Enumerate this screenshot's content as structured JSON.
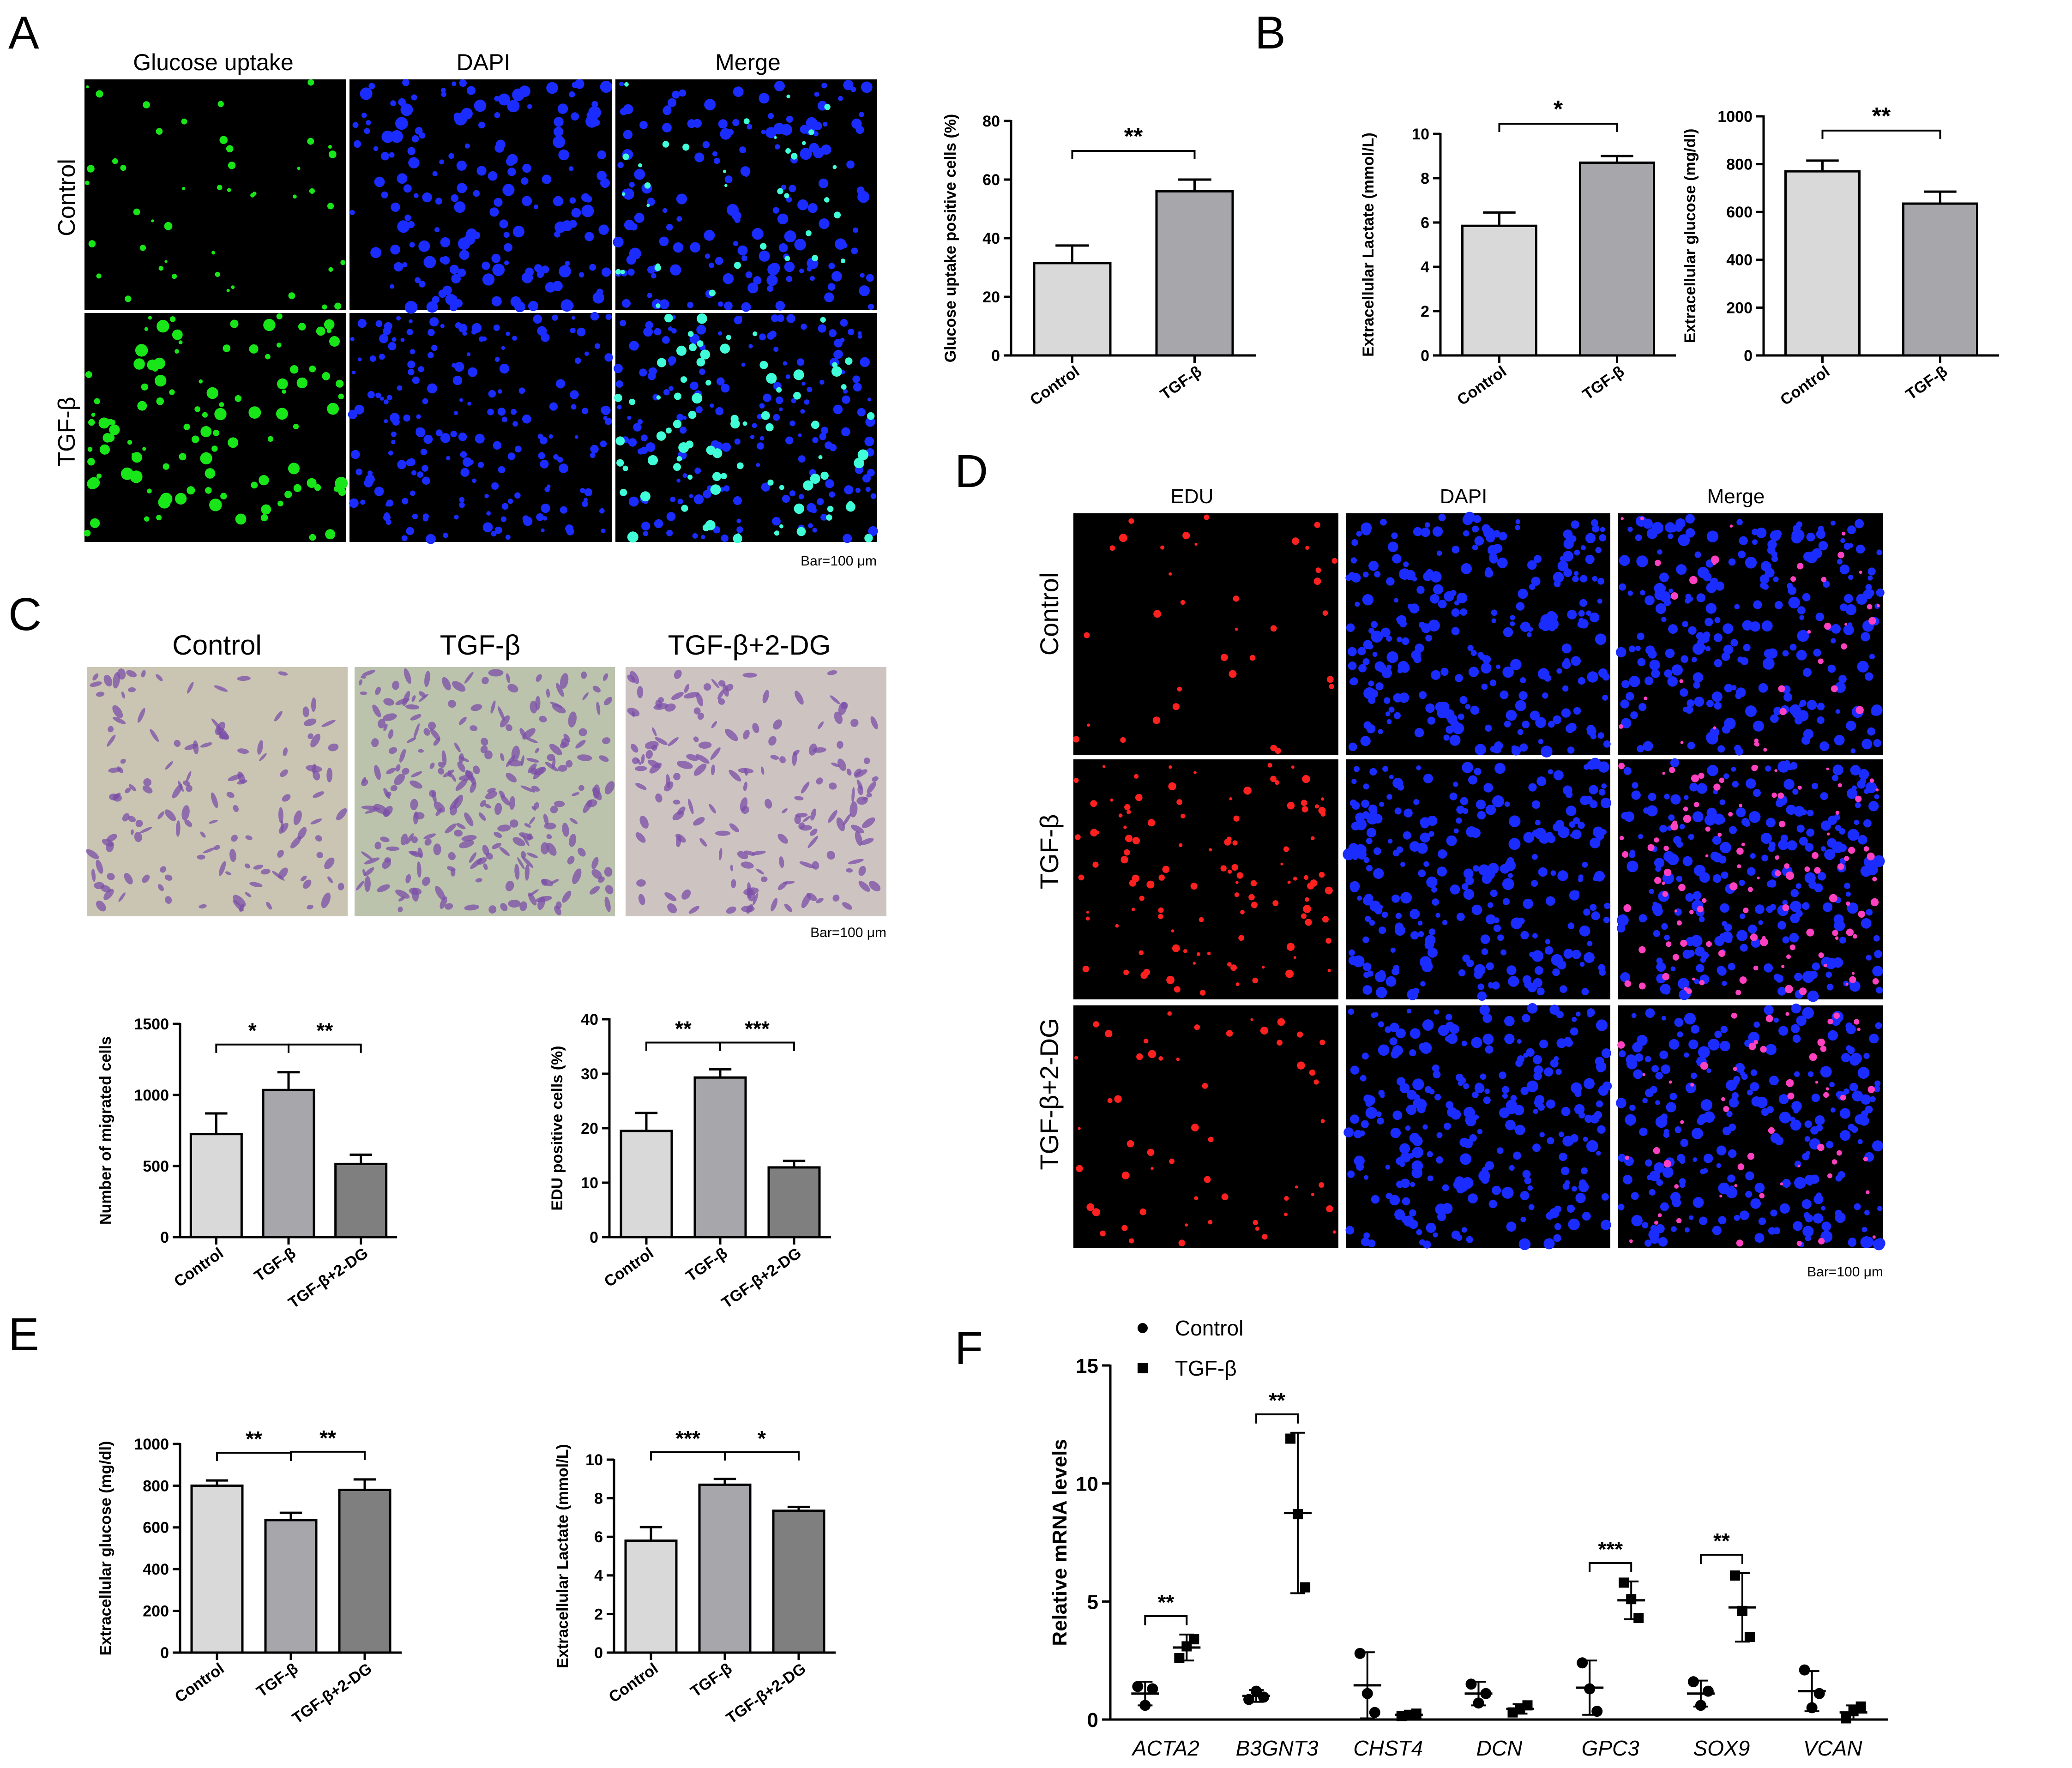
{
  "panels": {
    "A": {
      "letter": "A",
      "col_titles": [
        "Glucose uptake",
        "DAPI",
        "Merge"
      ],
      "row_labels": [
        "Control",
        "TGF-β"
      ],
      "scale_bar": "Bar=100 μm"
    },
    "B": {
      "letter": "B"
    },
    "C": {
      "letter": "C",
      "col_titles": [
        "Control",
        "TGF-β",
        "TGF-β+2-DG"
      ],
      "scale_bar": "Bar=100 μm"
    },
    "D": {
      "letter": "D",
      "col_titles": [
        "EDU",
        "DAPI",
        "Merge"
      ],
      "row_labels": [
        "Control",
        "TGF-β",
        "TGF-β+2-DG"
      ],
      "scale_bar": "Bar=100 μm"
    },
    "E": {
      "letter": "E"
    },
    "F": {
      "letter": "F"
    }
  },
  "colors": {
    "control_bar": "#d9d9d9",
    "tgf_bar": "#a6a6ab",
    "dg_bar": "#7f7f7f",
    "fluor_green": "#19e619",
    "fluor_blue": "#1a2cff",
    "fluor_red": "#ff2020",
    "fluor_cyan": "#40ffd8",
    "fluor_magenta": "#ff40c0",
    "crystal_violet": "#7b4fa8",
    "stain_background": "#c9c5b2"
  },
  "chart_data": [
    {
      "id": "A-chart",
      "type": "bar",
      "categories": [
        "Control",
        "TGF-β"
      ],
      "values": [
        31.5,
        56
      ],
      "errors": [
        6,
        4
      ],
      "ylabel": "Glucose uptake positive cells (%)",
      "ylim": [
        0,
        80
      ],
      "yticks": [
        0,
        20,
        40,
        60,
        80
      ],
      "significance": [
        {
          "from": 0,
          "to": 1,
          "label": "**"
        }
      ]
    },
    {
      "id": "B-chart-1",
      "type": "bar",
      "categories": [
        "Control",
        "TGF-β"
      ],
      "values": [
        5.85,
        8.7
      ],
      "errors": [
        0.6,
        0.3
      ],
      "ylabel": "Extracellular Lactate (mmol/L)",
      "ylim": [
        0,
        10
      ],
      "yticks": [
        0,
        2,
        4,
        6,
        8,
        10
      ],
      "significance": [
        {
          "from": 0,
          "to": 1,
          "label": "*"
        }
      ]
    },
    {
      "id": "B-chart-2",
      "type": "bar",
      "categories": [
        "Control",
        "TGF-β"
      ],
      "values": [
        770,
        635
      ],
      "errors": [
        45,
        50
      ],
      "ylabel": "Extracellular glucose (mg/dl)",
      "ylim": [
        0,
        1000
      ],
      "yticks": [
        0,
        200,
        400,
        600,
        800,
        1000
      ],
      "significance": [
        {
          "from": 0,
          "to": 1,
          "label": "**"
        }
      ]
    },
    {
      "id": "C-chart-1",
      "type": "bar",
      "categories": [
        "Control",
        "TGF-β",
        "TGF-β+2-DG"
      ],
      "values": [
        725,
        1035,
        515
      ],
      "errors": [
        145,
        125,
        65
      ],
      "ylabel": "Number of migrated cells",
      "ylim": [
        0,
        1500
      ],
      "yticks": [
        0,
        500,
        1000,
        1500
      ],
      "significance": [
        {
          "from": 0,
          "to": 1,
          "label": "*"
        },
        {
          "from": 1,
          "to": 2,
          "label": "**"
        }
      ]
    },
    {
      "id": "C-chart-2",
      "type": "bar",
      "categories": [
        "Control",
        "TGF-β",
        "TGF-β+2-DG"
      ],
      "values": [
        19.5,
        29.3,
        12.8
      ],
      "errors": [
        3.3,
        1.5,
        1.2
      ],
      "ylabel": "EDU positive cells (%)",
      "ylim": [
        0,
        40
      ],
      "yticks": [
        0,
        10,
        20,
        30,
        40
      ],
      "significance": [
        {
          "from": 0,
          "to": 1,
          "label": "**"
        },
        {
          "from": 1,
          "to": 2,
          "label": "***"
        }
      ]
    },
    {
      "id": "E-chart-1",
      "type": "bar",
      "categories": [
        "Control",
        "TGF-β",
        "TGF-β+2-DG"
      ],
      "values": [
        800,
        635,
        780
      ],
      "errors": [
        25,
        35,
        50
      ],
      "ylabel": "Extracellular glucose (mg/dl)",
      "ylim": [
        0,
        1000
      ],
      "yticks": [
        0,
        200,
        400,
        600,
        800,
        1000
      ],
      "significance": [
        {
          "from": 0,
          "to": 1,
          "label": "**"
        },
        {
          "from": 1,
          "to": 2,
          "label": "**"
        }
      ]
    },
    {
      "id": "E-chart-2",
      "type": "bar",
      "categories": [
        "Control",
        "TGF-β",
        "TGF-β+2-DG"
      ],
      "values": [
        5.8,
        8.7,
        7.35
      ],
      "errors": [
        0.7,
        0.3,
        0.2
      ],
      "ylabel": "Extracellular Lactate (mmol/L)",
      "ylim": [
        0,
        10
      ],
      "yticks": [
        0,
        2,
        4,
        6,
        8,
        10
      ],
      "significance": [
        {
          "from": 0,
          "to": 1,
          "label": "***"
        },
        {
          "from": 1,
          "to": 2,
          "label": "*"
        }
      ]
    },
    {
      "id": "F-chart",
      "type": "scatter",
      "categories": [
        "ACTA2",
        "B3GNT3",
        "CHST4",
        "DCN",
        "GPC3",
        "SOX9",
        "VCAN"
      ],
      "ylabel": "Relative  mRNA levels",
      "ylim": [
        0,
        15
      ],
      "yticks": [
        0,
        5,
        10,
        15
      ],
      "legend": {
        "placement": "top-left",
        "entries": [
          "Control",
          "TGF-β"
        ]
      },
      "series": [
        {
          "name": "Control",
          "marker": "circle",
          "means": [
            1.1,
            1.0,
            1.45,
            1.1,
            1.35,
            1.1,
            1.2
          ],
          "sds": [
            0.5,
            0.25,
            1.4,
            0.5,
            1.15,
            0.55,
            0.85
          ],
          "points": [
            [
              1.4,
              0.6,
              1.3
            ],
            [
              0.85,
              1.2,
              0.95
            ],
            [
              2.8,
              1.1,
              0.3
            ],
            [
              1.5,
              0.7,
              1.1
            ],
            [
              2.4,
              1.3,
              0.35
            ],
            [
              1.6,
              0.6,
              1.2
            ],
            [
              2.1,
              0.5,
              1.1
            ]
          ]
        },
        {
          "name": "TGF-β",
          "marker": "square",
          "means": [
            3.05,
            8.75,
            0.2,
            0.45,
            5.05,
            4.75,
            0.3
          ],
          "sds": [
            0.55,
            3.4,
            0.05,
            0.2,
            0.8,
            1.45,
            0.3
          ],
          "points": [
            [
              2.6,
              3.1,
              3.4
            ],
            [
              11.9,
              8.7,
              5.6
            ],
            [
              0.15,
              0.2,
              0.25
            ],
            [
              0.3,
              0.45,
              0.6
            ],
            [
              5.8,
              5.1,
              4.3
            ],
            [
              6.1,
              4.6,
              3.5
            ],
            [
              0.05,
              0.35,
              0.55
            ]
          ]
        }
      ],
      "significance": [
        {
          "category": 0,
          "label": "**"
        },
        {
          "category": 1,
          "label": "**"
        },
        {
          "category": 4,
          "label": "***"
        },
        {
          "category": 5,
          "label": "**"
        }
      ]
    }
  ]
}
